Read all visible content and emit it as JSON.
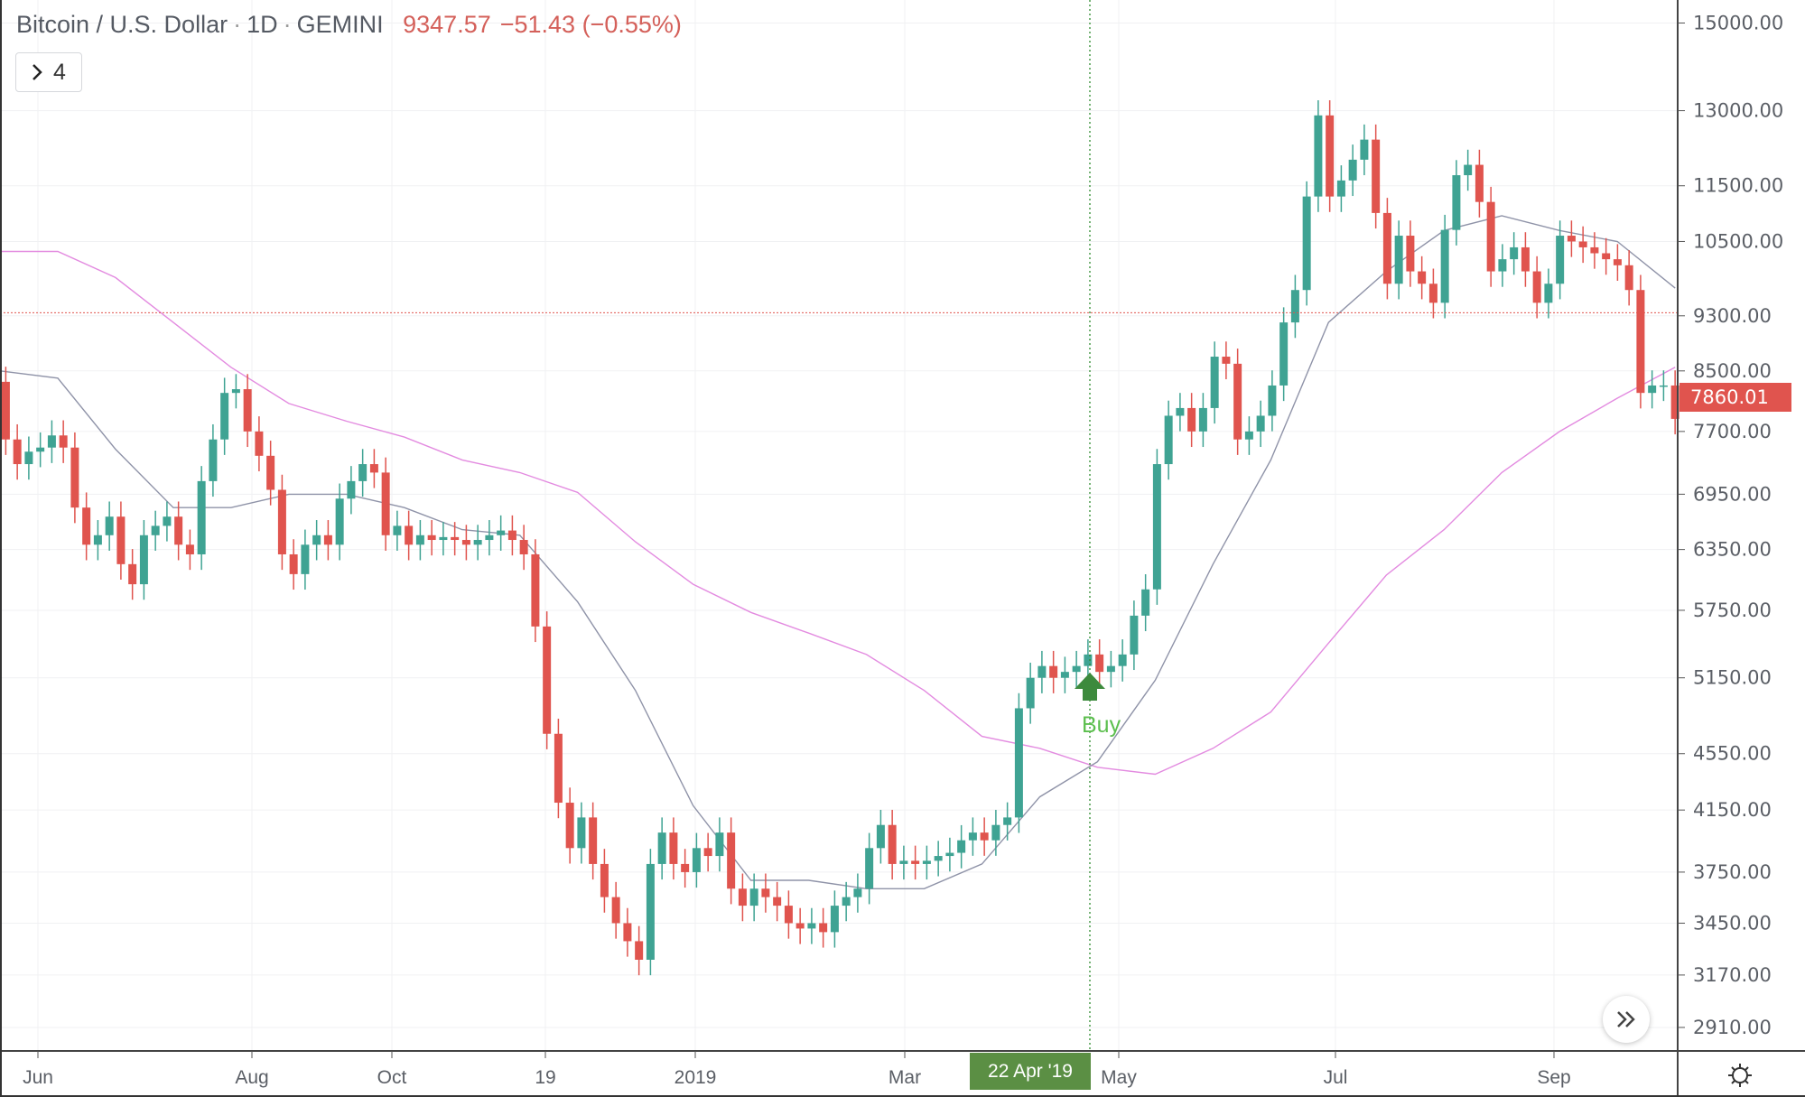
{
  "header": {
    "symbol": "Bitcoin / U.S. Dollar",
    "interval": "1D",
    "exchange": "GEMINI",
    "separator": "·",
    "last": "9347.57",
    "change": "−51.43 (−0.55%)",
    "indicators_toggle_icon": "chevron-right-icon",
    "indicators_count": "4"
  },
  "colors": {
    "up": "#3fa393",
    "down": "#e0544e",
    "ma_slow": "#e38be0",
    "ma_fast": "#8f93a8",
    "crosshair_price_line": "#e0544e",
    "marker_line": "#2e8b2e",
    "buy": "#5cbf4e",
    "date_label_bg": "#5b8f44"
  },
  "chart_data": {
    "type": "candlestick",
    "title": "Bitcoin / U.S. Dollar · 1D · GEMINI",
    "y_scale": "log",
    "ylim": [
      2800,
      15600
    ],
    "grid": true,
    "y_ticks": [
      "15000.00",
      "13000.00",
      "11500.00",
      "10500.00",
      "9300.00",
      "8500.00",
      "7700.00",
      "6950.00",
      "6350.00",
      "5750.00",
      "5150.00",
      "4550.00",
      "4150.00",
      "3750.00",
      "3450.00",
      "3170.00",
      "2910.00"
    ],
    "x_ticks": [
      "Jun",
      "Aug",
      "Oct",
      "19",
      "2019",
      "Mar",
      "May",
      "Jul",
      "Sep"
    ],
    "close": [
      7600,
      7300,
      7450,
      7500,
      7650,
      7500,
      6800,
      6400,
      6500,
      6700,
      6200,
      6000,
      6500,
      6600,
      6700,
      6400,
      6300,
      7100,
      7600,
      8200,
      8250,
      7700,
      7400,
      7000,
      6300,
      6100,
      6400,
      6500,
      6400,
      6900,
      7100,
      7300,
      7200,
      6500,
      6600,
      6400,
      6500,
      6450,
      6480,
      6450,
      6400,
      6450,
      6500,
      6550,
      6450,
      6300,
      5600,
      4700,
      4200,
      3900,
      4100,
      3800,
      3600,
      3450,
      3350,
      3250,
      3800,
      4000,
      3800,
      3750,
      3900,
      3850,
      4000,
      3650,
      3550,
      3650,
      3600,
      3550,
      3450,
      3420,
      3450,
      3400,
      3550,
      3600,
      3650,
      3900,
      4050,
      3800,
      3820,
      3800,
      3820,
      3850,
      3870,
      3950,
      4000,
      3950,
      4050,
      4100,
      4900,
      5150,
      5250,
      5150,
      5200,
      5250,
      5350,
      5200,
      5250,
      5350,
      5700,
      5950,
      7300,
      7900,
      8000,
      7700,
      8000,
      8700,
      8600,
      7600,
      7700,
      7900,
      8300,
      9200,
      9700,
      11300,
      12900,
      11300,
      11600,
      12000,
      12400,
      11000,
      9800,
      10600,
      10000,
      9800,
      9500,
      10700,
      11700,
      11900,
      11200,
      10000,
      10200,
      10400,
      10000,
      9500,
      9800,
      10600,
      10500,
      10400,
      10300,
      10200,
      10100,
      9700,
      8200,
      8300,
      8300,
      7860
    ],
    "first_open": 8350,
    "ma_slow": [
      10330,
      10330,
      9900,
      9200,
      8550,
      8060,
      7830,
      7630,
      7350,
      7200,
      6970,
      6430,
      6000,
      5730,
      5540,
      5350,
      5045,
      4680,
      4590,
      4450,
      4400,
      4590,
      4870,
      5450,
      6090,
      6560,
      7200,
      7700,
      8130,
      8550
    ],
    "ma_fast": [
      8500,
      8400,
      7480,
      6800,
      6800,
      6950,
      6950,
      6800,
      6560,
      6500,
      5830,
      5045,
      4180,
      3700,
      3700,
      3650,
      3650,
      3800,
      4240,
      4490,
      5130,
      6200,
      7350,
      9200,
      10000,
      10690,
      10950,
      10690,
      10500,
      9730
    ],
    "crosshair_price": 9347.57,
    "last_price_label": "7860.01",
    "marker": {
      "date_label": "22 Apr '19",
      "signal": "Buy",
      "icon": "arrow-up-icon"
    }
  },
  "controls": {
    "scroll_to_realtime_icon": "double-chevron-right-icon",
    "settings_icon": "gear-icon"
  }
}
